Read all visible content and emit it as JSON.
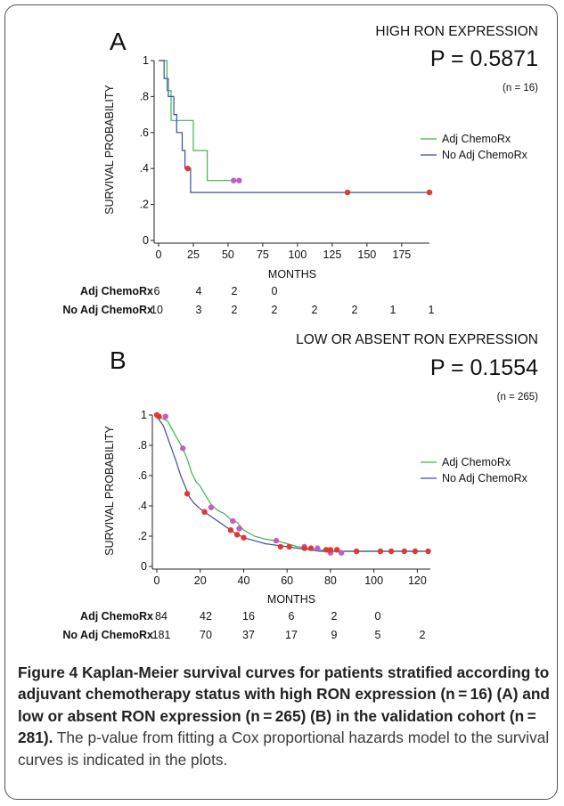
{
  "chart_data": [
    {
      "type": "line",
      "panel_label": "A",
      "title": "HIGH RON EXPRESSION",
      "p_value_text": "P = 0.5871",
      "n_text": "(n = 16)",
      "xlabel": "MONTHS",
      "ylabel": "SURVIVAL PROBABILITY",
      "xlim": [
        0,
        195
      ],
      "ylim": [
        0,
        1
      ],
      "x_ticks": [
        0,
        25,
        50,
        75,
        100,
        125,
        150,
        175
      ],
      "y_ticks": [
        0,
        0.2,
        0.4,
        0.6,
        0.8,
        1
      ],
      "y_tick_labels": [
        "0",
        ".2",
        ".4",
        ".6",
        ".8",
        "1"
      ],
      "legend_position": "right",
      "series": [
        {
          "name": "Adj ChemoRx",
          "color": "#3fb34f",
          "points": [
            [
              0,
              1
            ],
            [
              6,
              1
            ],
            [
              6,
              0.833
            ],
            [
              9,
              0.833
            ],
            [
              9,
              0.667
            ],
            [
              25,
              0.667
            ],
            [
              25,
              0.5
            ],
            [
              35,
              0.5
            ],
            [
              35,
              0.333
            ],
            [
              60,
              0.333
            ]
          ],
          "censored": [
            [
              54,
              0.333
            ],
            [
              58,
              0.333
            ]
          ]
        },
        {
          "name": "No Adj ChemoRx",
          "color": "#3b4ba8",
          "points": [
            [
              0,
              1
            ],
            [
              4,
              1
            ],
            [
              4,
              0.9
            ],
            [
              7,
              0.9
            ],
            [
              7,
              0.8
            ],
            [
              11,
              0.8
            ],
            [
              11,
              0.7
            ],
            [
              13,
              0.7
            ],
            [
              13,
              0.6
            ],
            [
              17,
              0.6
            ],
            [
              17,
              0.5
            ],
            [
              19,
              0.5
            ],
            [
              19,
              0.4
            ],
            [
              23,
              0.4
            ],
            [
              23,
              0.267
            ],
            [
              195,
              0.267
            ]
          ],
          "censored": [
            [
              21,
              0.4
            ],
            [
              136,
              0.267
            ],
            [
              195,
              0.267
            ]
          ]
        }
      ],
      "risk_table": {
        "rows": [
          {
            "label": "Adj ChemoRx",
            "values": [
              "6",
              "4",
              "2",
              "0"
            ]
          },
          {
            "label": "No Adj ChemoRx",
            "values": [
              "10",
              "3",
              "2",
              "2",
              "2",
              "2",
              "1",
              "1"
            ]
          }
        ]
      }
    },
    {
      "type": "line",
      "panel_label": "B",
      "title": "LOW OR ABSENT RON EXPRESSION",
      "p_value_text": "P = 0.1554",
      "n_text": "(n = 265)",
      "xlabel": "MONTHS",
      "ylabel": "SURVIVAL PROBABILITY",
      "xlim": [
        0,
        126
      ],
      "ylim": [
        0,
        1
      ],
      "x_ticks": [
        0,
        20,
        40,
        60,
        80,
        100,
        120
      ],
      "y_ticks": [
        0,
        0.2,
        0.4,
        0.6,
        0.8,
        1
      ],
      "y_tick_labels": [
        "0",
        ".2",
        ".4",
        ".6",
        ".8",
        "1"
      ],
      "legend_position": "right",
      "series": [
        {
          "name": "Adj ChemoRx",
          "color": "#3fb34f",
          "points": [
            [
              0,
              1
            ],
            [
              2,
              0.98
            ],
            [
              5,
              0.96
            ],
            [
              8,
              0.88
            ],
            [
              10,
              0.83
            ],
            [
              12,
              0.78
            ],
            [
              14,
              0.71
            ],
            [
              16,
              0.62
            ],
            [
              18,
              0.56
            ],
            [
              20,
              0.53
            ],
            [
              22,
              0.48
            ],
            [
              25,
              0.41
            ],
            [
              28,
              0.37
            ],
            [
              31,
              0.35
            ],
            [
              34,
              0.31
            ],
            [
              37,
              0.29
            ],
            [
              40,
              0.24
            ],
            [
              45,
              0.2
            ],
            [
              50,
              0.18
            ],
            [
              55,
              0.17
            ],
            [
              60,
              0.15
            ],
            [
              65,
              0.13
            ],
            [
              70,
              0.12
            ],
            [
              75,
              0.11
            ],
            [
              80,
              0.1
            ],
            [
              126,
              0.1
            ]
          ],
          "censored": [
            [
              1,
              0.99
            ],
            [
              4,
              0.99
            ],
            [
              12,
              0.78
            ],
            [
              25,
              0.39
            ],
            [
              35,
              0.3
            ],
            [
              38,
              0.25
            ],
            [
              55,
              0.17
            ],
            [
              68,
              0.13
            ],
            [
              74,
              0.12
            ],
            [
              80,
              0.09
            ],
            [
              85,
              0.09
            ]
          ]
        },
        {
          "name": "No Adj ChemoRx",
          "color": "#3b4ba8",
          "points": [
            [
              0,
              1
            ],
            [
              1,
              0.97
            ],
            [
              3,
              0.93
            ],
            [
              5,
              0.85
            ],
            [
              7,
              0.77
            ],
            [
              9,
              0.69
            ],
            [
              11,
              0.6
            ],
            [
              13,
              0.53
            ],
            [
              15,
              0.46
            ],
            [
              17,
              0.42
            ],
            [
              20,
              0.38
            ],
            [
              24,
              0.34
            ],
            [
              28,
              0.3
            ],
            [
              32,
              0.26
            ],
            [
              36,
              0.22
            ],
            [
              40,
              0.19
            ],
            [
              45,
              0.17
            ],
            [
              50,
              0.15
            ],
            [
              55,
              0.14
            ],
            [
              60,
              0.13
            ],
            [
              65,
              0.12
            ],
            [
              70,
              0.11
            ],
            [
              75,
              0.1
            ],
            [
              126,
              0.1
            ]
          ],
          "censored": [
            [
              0,
              1
            ],
            [
              1,
              0.99
            ],
            [
              14,
              0.48
            ],
            [
              22,
              0.36
            ],
            [
              34,
              0.24
            ],
            [
              37,
              0.21
            ],
            [
              40,
              0.19
            ],
            [
              57,
              0.13
            ],
            [
              61,
              0.13
            ],
            [
              68,
              0.12
            ],
            [
              71,
              0.12
            ],
            [
              78,
              0.11
            ],
            [
              80,
              0.11
            ],
            [
              83,
              0.11
            ],
            [
              92,
              0.1
            ],
            [
              103,
              0.1
            ],
            [
              108,
              0.1
            ],
            [
              114,
              0.1
            ],
            [
              119,
              0.1
            ],
            [
              125,
              0.1
            ]
          ]
        }
      ],
      "risk_table": {
        "rows": [
          {
            "label": "Adj ChemoRx",
            "values": [
              "84",
              "42",
              "16",
              "6",
              "2",
              "0"
            ]
          },
          {
            "label": "No Adj ChemoRx",
            "values": [
              "181",
              "70",
              "37",
              "17",
              "9",
              "5",
              "2"
            ]
          }
        ]
      }
    }
  ],
  "caption": {
    "bold": "Figure 4 Kaplan-Meier survival curves for patients stratified according to adjuvant chemotherapy status with high RON expression (n = 16) (A) and low or absent RON expression (n = 265) (B) in the validation cohort (n = 281).",
    "plain": " The p-value from fitting a Cox proportional hazards model to the survival curves is indicated in the plots."
  }
}
